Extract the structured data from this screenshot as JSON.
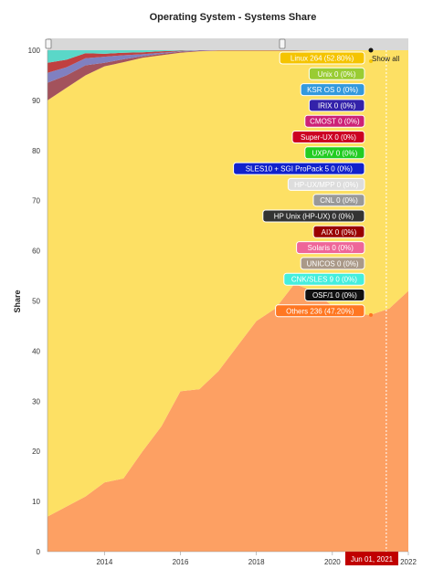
{
  "chart_data": {
    "type": "area",
    "stacked": true,
    "title": "Operating System - Systems Share",
    "ylabel": "Share",
    "ylim": [
      0,
      100
    ],
    "yticks": [
      "0",
      "10",
      "20",
      "30",
      "40",
      "50",
      "60",
      "70",
      "80",
      "90",
      "100"
    ],
    "xticks": [
      {
        "label": "2014",
        "x": 2014
      },
      {
        "label": "2016",
        "x": 2016
      },
      {
        "label": "2018",
        "x": 2018
      },
      {
        "label": "2020",
        "x": 2020
      },
      {
        "label": "2022",
        "x": 2022
      }
    ],
    "xlim": [
      2012.5,
      2022.0
    ],
    "x": [
      2012.5,
      2013.0,
      2013.5,
      2014.0,
      2014.5,
      2015.0,
      2015.5,
      2016.0,
      2016.5,
      2017.0,
      2017.5,
      2018.0,
      2018.5,
      2019.0,
      2019.5,
      2020.0,
      2020.5,
      2021.0,
      2021.5,
      2022.0
    ],
    "series": [
      {
        "name": "Others",
        "color": "#fda063",
        "values": [
          7.0,
          9.0,
          11.0,
          13.8,
          14.6,
          20.0,
          25.0,
          32.0,
          32.4,
          36.0,
          41.0,
          46.0,
          48.5,
          53.4,
          52.0,
          49.0,
          47.5,
          47.2,
          48.5,
          52.0
        ]
      },
      {
        "name": "Linux",
        "color": "#fde064",
        "values": [
          83.0,
          83.5,
          84.0,
          83.0,
          83.0,
          78.5,
          74.0,
          67.5,
          67.4,
          63.9,
          58.9,
          53.9,
          51.4,
          46.5,
          48.0,
          51.0,
          52.5,
          52.8,
          51.5,
          48.0
        ]
      },
      {
        "name": "AIX",
        "color": "#a3525c",
        "values": [
          3.5,
          2.5,
          2.0,
          0.7,
          0.6,
          0.3,
          0.3,
          0.2,
          0.1,
          0.1,
          0.1,
          0.1,
          0.1,
          0.1,
          0.0,
          0.0,
          0.0,
          0.0,
          0.0,
          0.0
        ]
      },
      {
        "name": "Unix",
        "color": "#8080c0",
        "values": [
          2.0,
          1.6,
          1.4,
          1.2,
          0.8,
          0.4,
          0.2,
          0.1,
          0.1,
          0.0,
          0.0,
          0.0,
          0.0,
          0.0,
          0.0,
          0.0,
          0.0,
          0.0,
          0.0,
          0.0
        ]
      },
      {
        "name": "SLES10 + SGI ProPack 5",
        "color": "#c04040",
        "values": [
          2.0,
          1.5,
          1.0,
          0.6,
          0.5,
          0.4,
          0.3,
          0.1,
          0.0,
          0.0,
          0.0,
          0.0,
          0.0,
          0.0,
          0.0,
          0.0,
          0.0,
          0.0,
          0.0,
          0.0
        ]
      },
      {
        "name": "CNK/SLES 9",
        "color": "#5ad7c8",
        "values": [
          2.5,
          1.9,
          0.6,
          0.7,
          0.5,
          0.4,
          0.2,
          0.1,
          0.0,
          0.0,
          0.0,
          0.0,
          0.0,
          0.0,
          0.0,
          0.0,
          0.0,
          0.0,
          0.0,
          0.0
        ]
      }
    ],
    "tooltip": {
      "date": "Jun 01, 2021",
      "show_all": "Show all",
      "items": [
        {
          "text": "Linux 264 (52.80%)",
          "bg": "#f5c400",
          "fg": "#ffffff"
        },
        {
          "text": "Unix 0 (0%)",
          "bg": "#99cc33",
          "fg": "#ffffff"
        },
        {
          "text": "KSR OS 0 (0%)",
          "bg": "#3399dd",
          "fg": "#ffffff"
        },
        {
          "text": "IRIX 0 (0%)",
          "bg": "#3322aa",
          "fg": "#ffffff"
        },
        {
          "text": "CMOST 0 (0%)",
          "bg": "#cc2277",
          "fg": "#ffffff"
        },
        {
          "text": "Super-UX 0 (0%)",
          "bg": "#cc0022",
          "fg": "#ffffff"
        },
        {
          "text": "UXP/V 0 (0%)",
          "bg": "#22cc22",
          "fg": "#ffffff"
        },
        {
          "text": "SLES10 + SGI ProPack 5 0 (0%)",
          "bg": "#1122cc",
          "fg": "#ffffff"
        },
        {
          "text": "HP-UX/MPP 0 (0%)",
          "bg": "#dddddd",
          "fg": "#ffffff"
        },
        {
          "text": "CNL 0 (0%)",
          "bg": "#999999",
          "fg": "#ffffff"
        },
        {
          "text": "HP Unix (HP-UX) 0 (0%)",
          "bg": "#333333",
          "fg": "#ffffff"
        },
        {
          "text": "AIX 0 (0%)",
          "bg": "#990000",
          "fg": "#ffffff"
        },
        {
          "text": "Solaris 0 (0%)",
          "bg": "#ee6699",
          "fg": "#ffffff"
        },
        {
          "text": "UNICOS 0 (0%)",
          "bg": "#aa9988",
          "fg": "#ffffff"
        },
        {
          "text": "CNK/SLES 9 0 (0%)",
          "bg": "#44eedd",
          "fg": "#ffffff"
        },
        {
          "text": "OSF/1 0 (0%)",
          "bg": "#111111",
          "fg": "#ffffff"
        },
        {
          "text": "Others 236 (47.20%)",
          "bg": "#ff7722",
          "fg": "#ffffff"
        }
      ]
    }
  },
  "colors": {
    "datebox": "#c00000",
    "scroller": "#d8d8d8",
    "tooltip_border": "#ffffff"
  }
}
